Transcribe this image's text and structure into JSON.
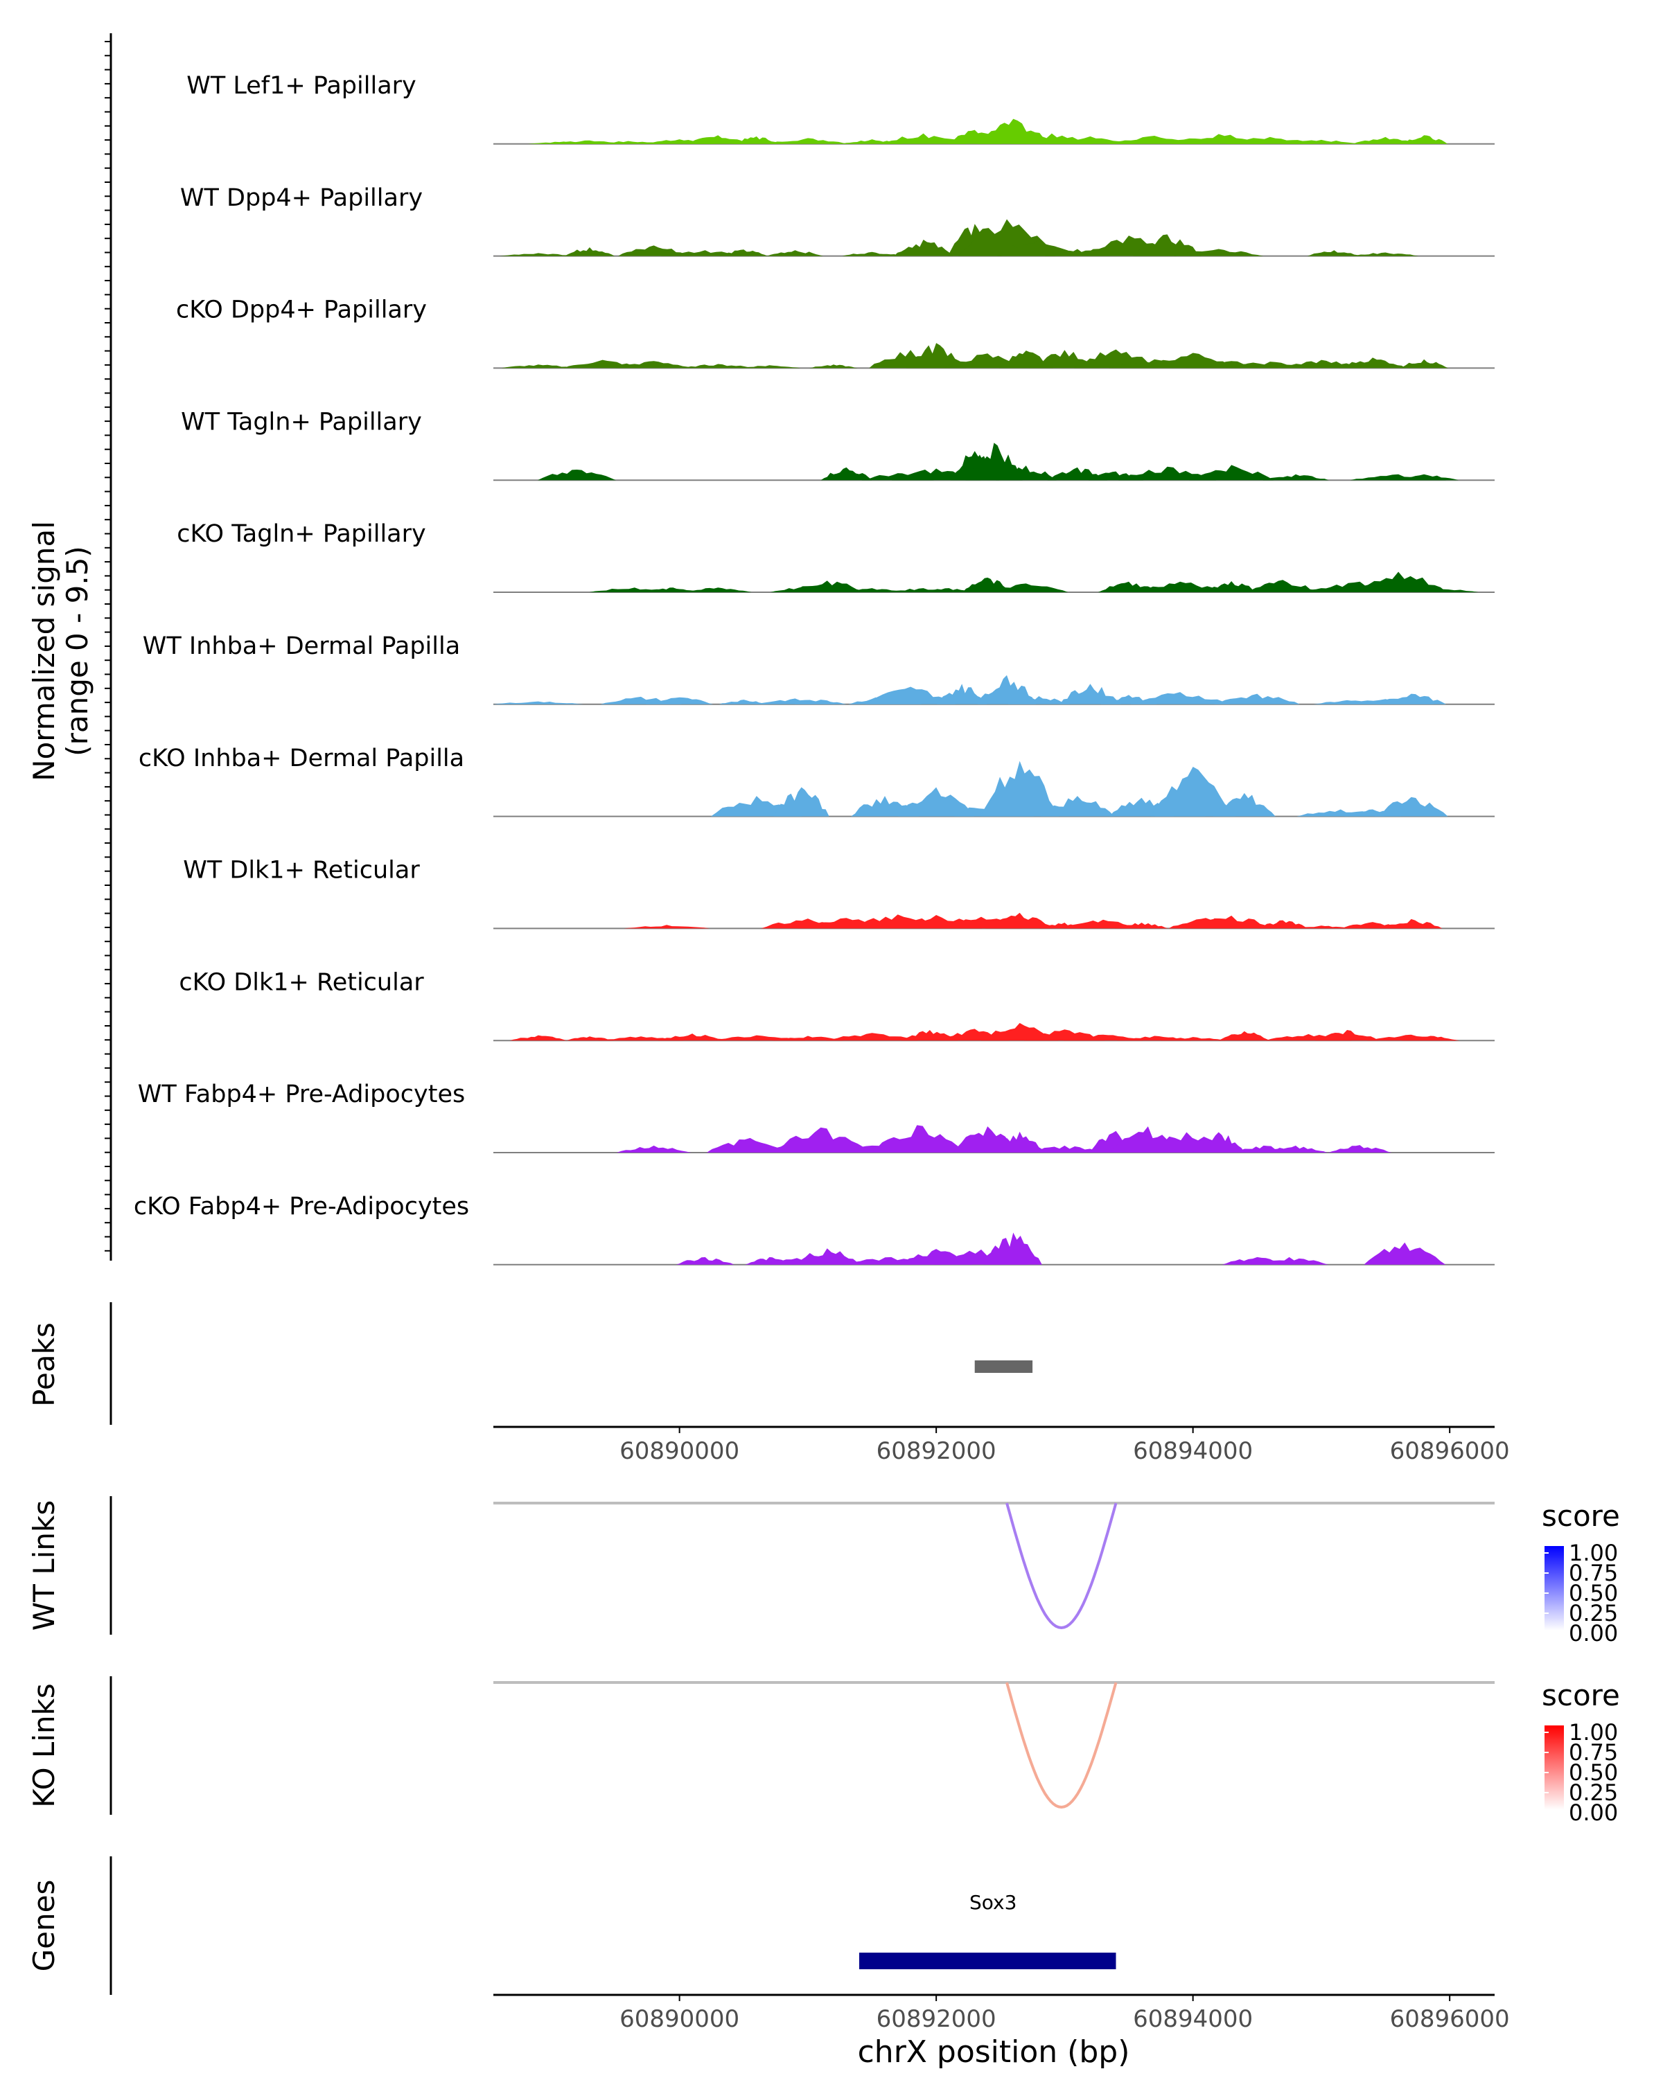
{
  "chart_data": {
    "type": "area",
    "title": "",
    "signal_panel": {
      "ylabel_line1": "Normalized signal",
      "ylabel_line2": "(range 0 - 9.5)",
      "ylim": [
        0,
        9.5
      ],
      "tracks": [
        {
          "name": "WT Lef1+ Papillary",
          "color": "#66CC00",
          "peaks": [
            [
              60889100,
              0.4
            ],
            [
              60889300,
              0.6
            ],
            [
              60889600,
              0.5
            ],
            [
              60890000,
              0.8
            ],
            [
              60890300,
              1.5
            ],
            [
              60890600,
              1.3
            ],
            [
              60891000,
              1.0
            ],
            [
              60891500,
              0.8
            ],
            [
              60891900,
              1.8
            ],
            [
              60892300,
              2.4
            ],
            [
              60892600,
              4.3
            ],
            [
              60892900,
              1.8
            ],
            [
              60893200,
              1.3
            ],
            [
              60893700,
              1.4
            ],
            [
              60894200,
              1.7
            ],
            [
              60894600,
              1.2
            ],
            [
              60895000,
              0.7
            ],
            [
              60895500,
              1.2
            ],
            [
              60895800,
              1.5
            ]
          ]
        },
        {
          "name": "WT Dpp4+ Papillary",
          "color": "#3F7F00",
          "peaks": [
            [
              60888900,
              0.5
            ],
            [
              60889300,
              1.5
            ],
            [
              60889800,
              1.8
            ],
            [
              60890200,
              1.0
            ],
            [
              60890500,
              1.1
            ],
            [
              60890900,
              1.0
            ],
            [
              60891500,
              0.7
            ],
            [
              60891900,
              2.8
            ],
            [
              60892300,
              5.5
            ],
            [
              60892550,
              6.3
            ],
            [
              60892800,
              3.0
            ],
            [
              60893100,
              1.2
            ],
            [
              60893500,
              3.5
            ],
            [
              60893800,
              3.7
            ],
            [
              60894200,
              1.2
            ],
            [
              60895100,
              1.0
            ],
            [
              60895500,
              0.6
            ]
          ]
        },
        {
          "name": "cKO Dpp4+ Papillary",
          "color": "#3F7F00",
          "peaks": [
            [
              60888900,
              0.6
            ],
            [
              60889400,
              1.4
            ],
            [
              60889800,
              1.2
            ],
            [
              60890300,
              0.7
            ],
            [
              60890700,
              0.5
            ],
            [
              60891200,
              0.6
            ],
            [
              60891800,
              3.1
            ],
            [
              60892000,
              4.3
            ],
            [
              60892400,
              2.5
            ],
            [
              60892700,
              3.0
            ],
            [
              60893000,
              3.1
            ],
            [
              60893400,
              3.2
            ],
            [
              60893700,
              1.5
            ],
            [
              60894000,
              2.6
            ],
            [
              60894300,
              1.2
            ],
            [
              60894600,
              1.1
            ],
            [
              60895000,
              1.4
            ],
            [
              60895400,
              1.8
            ],
            [
              60895800,
              1.5
            ]
          ]
        },
        {
          "name": "WT Tagln+ Papillary",
          "color": "#006400",
          "peaks": [
            [
              60889200,
              1.8
            ],
            [
              60891300,
              2.2
            ],
            [
              60891700,
              1.2
            ],
            [
              60892000,
              2.0
            ],
            [
              60892300,
              5.0
            ],
            [
              60892450,
              6.4
            ],
            [
              60892700,
              2.5
            ],
            [
              60893100,
              2.2
            ],
            [
              60893400,
              1.5
            ],
            [
              60893800,
              2.3
            ],
            [
              60894300,
              2.6
            ],
            [
              60894800,
              1.0
            ],
            [
              60895600,
              1.0
            ],
            [
              60895800,
              1.0
            ]
          ]
        },
        {
          "name": "cKO Tagln+ Papillary",
          "color": "#006400",
          "peaks": [
            [
              60889650,
              0.8
            ],
            [
              60889950,
              0.8
            ],
            [
              60890300,
              0.8
            ],
            [
              60891000,
              1.0
            ],
            [
              60891150,
              2.0
            ],
            [
              60891500,
              0.7
            ],
            [
              60891900,
              0.7
            ],
            [
              60892100,
              0.7
            ],
            [
              60892400,
              2.5
            ],
            [
              60892700,
              1.5
            ],
            [
              60893500,
              1.8
            ],
            [
              60893900,
              1.8
            ],
            [
              60894300,
              1.9
            ],
            [
              60894700,
              2.1
            ],
            [
              60895000,
              0.7
            ],
            [
              60895300,
              1.8
            ],
            [
              60895600,
              3.5
            ],
            [
              60895850,
              0.8
            ]
          ]
        },
        {
          "name": "WT Inhba+ Dermal Papilla",
          "color": "#5DADE2",
          "peaks": [
            [
              60888900,
              0.5
            ],
            [
              60889700,
              1.3
            ],
            [
              60890000,
              1.2
            ],
            [
              60890500,
              0.8
            ],
            [
              60890900,
              1.0
            ],
            [
              60891100,
              0.8
            ],
            [
              60891600,
              1.3
            ],
            [
              60891800,
              3.0
            ],
            [
              60892200,
              3.5
            ],
            [
              60892550,
              5.0
            ],
            [
              60892800,
              1.4
            ],
            [
              60893200,
              3.5
            ],
            [
              60893500,
              1.6
            ],
            [
              60893900,
              2.1
            ],
            [
              60894500,
              1.8
            ],
            [
              60895200,
              0.7
            ],
            [
              60895500,
              0.9
            ],
            [
              60895700,
              1.8
            ]
          ]
        },
        {
          "name": "cKO Inhba+ Dermal Papilla",
          "color": "#5DADE2",
          "peaks": [
            [
              60890600,
              3.5
            ],
            [
              60890950,
              5.0
            ],
            [
              60891600,
              3.5
            ],
            [
              60892000,
              5.0
            ],
            [
              60892450,
              2.5
            ],
            [
              60892650,
              9.5
            ],
            [
              60893100,
              3.5
            ],
            [
              60893600,
              3.2
            ],
            [
              60893900,
              5.5
            ],
            [
              60894000,
              8.5
            ],
            [
              60894400,
              4.0
            ],
            [
              60895150,
              1.2
            ],
            [
              60895400,
              1.2
            ],
            [
              60895700,
              3.3
            ]
          ]
        },
        {
          "name": "WT Dlk1+ Reticular",
          "color": "#FF2020",
          "peaks": [
            [
              60889900,
              0.6
            ],
            [
              60891000,
              1.7
            ],
            [
              60891300,
              1.8
            ],
            [
              60891700,
              2.4
            ],
            [
              60892000,
              2.3
            ],
            [
              60892350,
              2.0
            ],
            [
              60892650,
              2.7
            ],
            [
              60893000,
              1.0
            ],
            [
              60893300,
              1.5
            ],
            [
              60893600,
              1.0
            ],
            [
              60894100,
              1.8
            ],
            [
              60894300,
              2.2
            ],
            [
              60894700,
              1.4
            ],
            [
              60895000,
              0.5
            ],
            [
              60895400,
              1.1
            ],
            [
              60895700,
              1.6
            ]
          ]
        },
        {
          "name": "cKO Dlk1+ Reticular",
          "color": "#FF2020",
          "peaks": [
            [
              60888900,
              0.9
            ],
            [
              60889300,
              0.7
            ],
            [
              60889700,
              0.7
            ],
            [
              60890100,
              1.2
            ],
            [
              60890600,
              0.9
            ],
            [
              60891000,
              0.8
            ],
            [
              60891500,
              1.3
            ],
            [
              60891950,
              1.8
            ],
            [
              60892300,
              2.0
            ],
            [
              60892650,
              3.0
            ],
            [
              60893000,
              1.9
            ],
            [
              60893300,
              1.0
            ],
            [
              60893700,
              0.8
            ],
            [
              60894000,
              0.6
            ],
            [
              60894400,
              1.6
            ],
            [
              60894900,
              1.1
            ],
            [
              60895200,
              1.8
            ],
            [
              60895700,
              1.0
            ],
            [
              60895850,
              0.8
            ]
          ]
        },
        {
          "name": "WT Fabp4+ Pre-Adipocytes",
          "color": "#A020F0",
          "peaks": [
            [
              60889800,
              1.2
            ],
            [
              60890550,
              2.5
            ],
            [
              60890900,
              1.3
            ],
            [
              60891100,
              4.3
            ],
            [
              60891500,
              1.2
            ],
            [
              60891850,
              4.7
            ],
            [
              60892050,
              1.3
            ],
            [
              60892400,
              4.5
            ],
            [
              60892650,
              3.6
            ],
            [
              60893000,
              1.2
            ],
            [
              60893400,
              3.7
            ],
            [
              60893650,
              4.5
            ],
            [
              60893950,
              3.5
            ],
            [
              60894200,
              3.5
            ],
            [
              60894550,
              1.2
            ],
            [
              60894800,
              1.2
            ],
            [
              60895300,
              1.3
            ]
          ]
        },
        {
          "name": "cKO Fabp4+ Pre-Adipocytes",
          "color": "#A020F0",
          "peaks": [
            [
              60890200,
              1.3
            ],
            [
              60890700,
              1.3
            ],
            [
              60891000,
              1.3
            ],
            [
              60891150,
              2.8
            ],
            [
              60891650,
              1.3
            ],
            [
              60892000,
              2.7
            ],
            [
              60892350,
              2.6
            ],
            [
              60892600,
              5.5
            ],
            [
              60894500,
              1.3
            ],
            [
              60894750,
              1.3
            ],
            [
              60895650,
              3.8
            ]
          ]
        }
      ]
    },
    "peaks_panel": {
      "ylabel": "Peaks",
      "regions": [
        [
          60892300,
          60892750
        ]
      ]
    },
    "x_axis": {
      "xlim": [
        60888550,
        60896350
      ],
      "ticks": [
        60890000,
        60892000,
        60894000,
        60896000
      ],
      "tick_labels": [
        "60890000",
        "60892000",
        "60894000",
        "60896000"
      ],
      "xlabel": "chrX position (bp)"
    },
    "link_panels": [
      {
        "ylabel": "WT Links",
        "legend_title": "score",
        "color": "#0000FF",
        "arc_color": "#A77DF2",
        "arc": [
          60892550,
          60893400
        ],
        "legend_ticks": [
          "1.00",
          "0.75",
          "0.50",
          "0.25",
          "0.00"
        ]
      },
      {
        "ylabel": "KO Links",
        "legend_title": "score",
        "color": "#FF0000",
        "arc_color": "#F5AA95",
        "arc": [
          60892550,
          60893400
        ],
        "legend_ticks": [
          "1.00",
          "0.75",
          "0.50",
          "0.25",
          "0.00"
        ]
      }
    ],
    "genes_panel": {
      "ylabel": "Genes",
      "genes": [
        {
          "name": "Sox3",
          "start": 60891400,
          "end": 60893400,
          "color": "#00008B"
        }
      ]
    }
  }
}
